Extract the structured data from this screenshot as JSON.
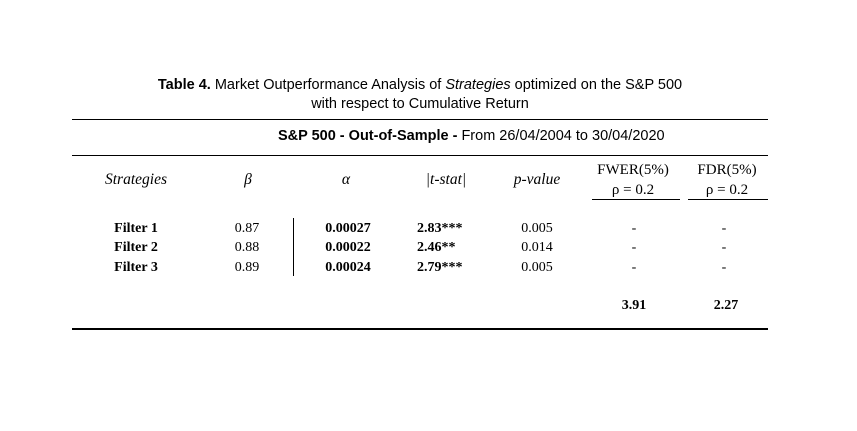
{
  "caption": {
    "label": "Table 4.",
    "text_before": " Market Outperformance Analysis of ",
    "italic_word": "Strategies",
    "text_after": " optimized on the S&P 500",
    "line2": "with respect to Cumulative Return"
  },
  "period": {
    "bold_text": "S&P 500 - Out-of-Sample - ",
    "plain_text": "From 26/04/2004 to 30/04/2020"
  },
  "headers": {
    "strategies": "Strategies",
    "beta": "β",
    "alpha": "α",
    "tstat": "|t-stat|",
    "pvalue": "p-value",
    "fwer_line1": "FWER(5%)",
    "fwer_line2": "ρ = 0.2",
    "fdr_line1": "FDR(5%)",
    "fdr_line2": "ρ = 0.2"
  },
  "rows": [
    {
      "strategy": "Filter 1",
      "beta": "0.87",
      "alpha": "0.00027",
      "tstat": "2.83***",
      "pvalue": "0.005",
      "fwer": "-",
      "fdr": "-"
    },
    {
      "strategy": "Filter 2",
      "beta": "0.88",
      "alpha": "0.00022",
      "tstat": "2.46**",
      "pvalue": "0.014",
      "fwer": "-",
      "fdr": "-"
    },
    {
      "strategy": "Filter 3",
      "beta": "0.89",
      "alpha": "0.00024",
      "tstat": "2.79***",
      "pvalue": "0.005",
      "fwer": "-",
      "fdr": "-"
    }
  ],
  "thresholds": {
    "fwer": "3.91",
    "fdr": "2.27"
  }
}
